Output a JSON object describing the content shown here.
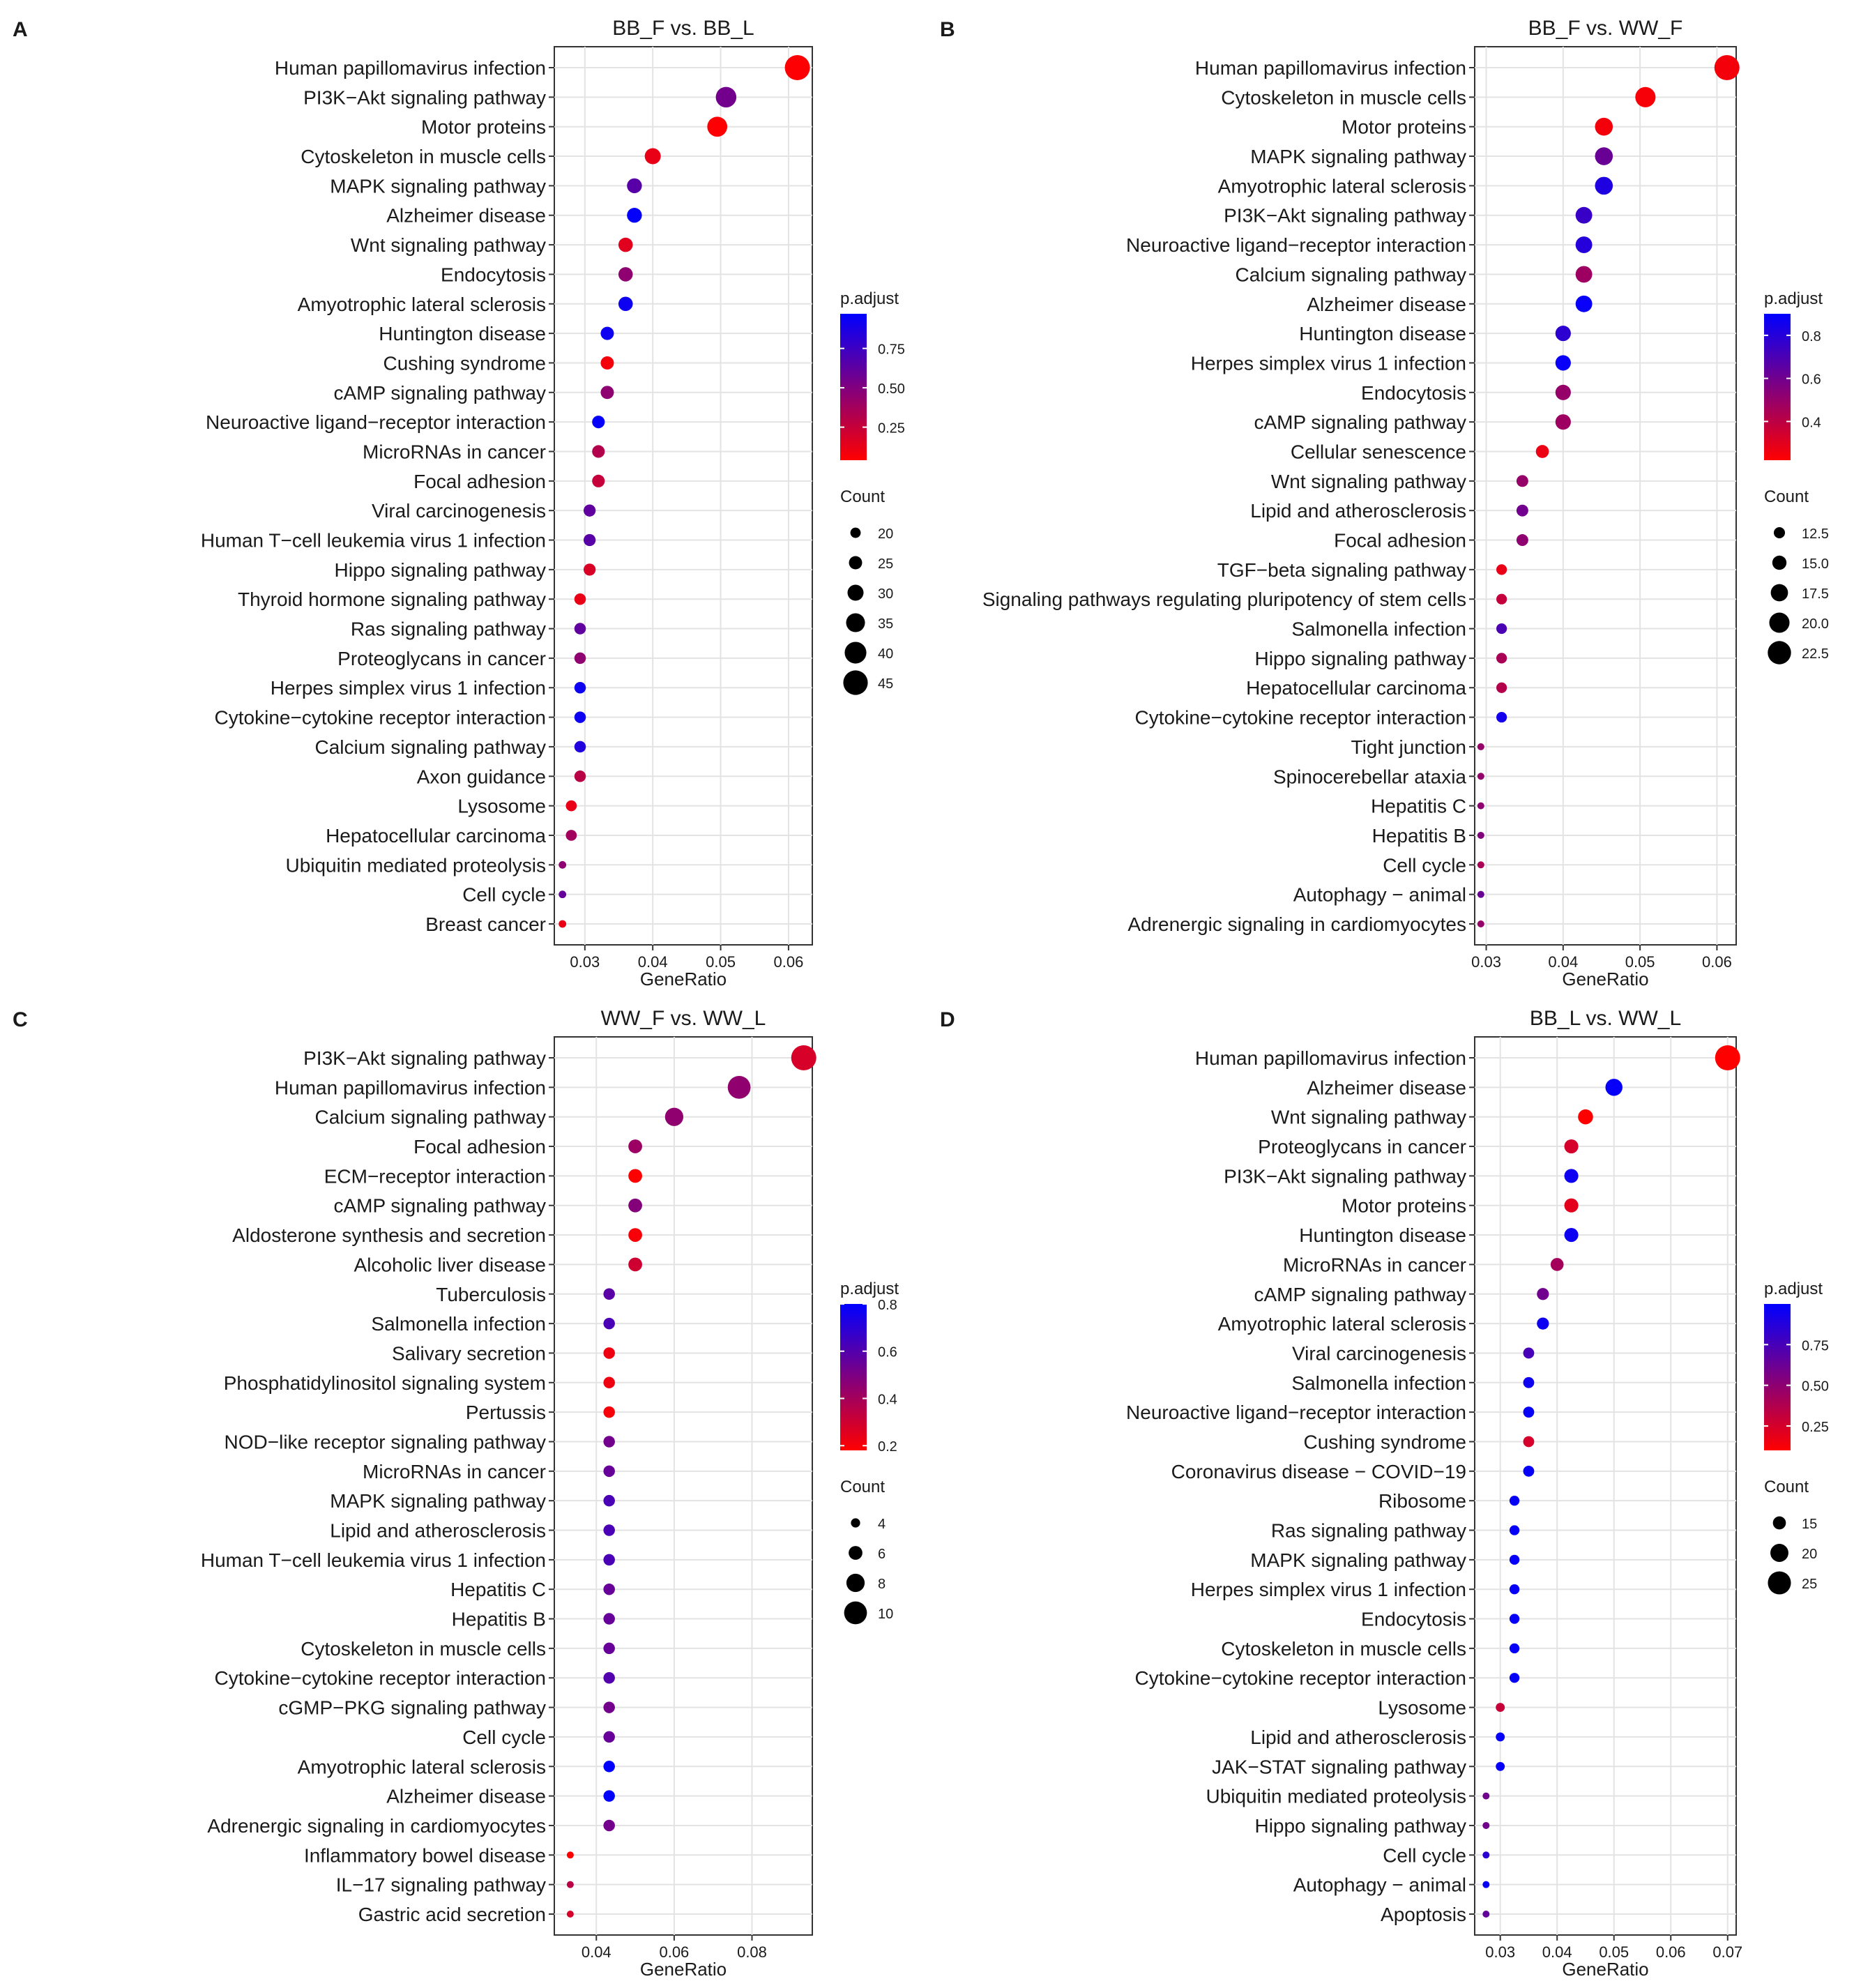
{
  "chart_data": [
    {
      "type": "scatter",
      "panel_letter": "A",
      "title": "BB_F vs. BB_L",
      "xlabel": "GeneRatio",
      "ylabel": "",
      "xlim": [
        0.0255,
        0.0635
      ],
      "xticks": [
        0.03,
        0.04,
        0.05,
        0.06
      ],
      "xtick_labels": [
        "0.03",
        "0.04",
        "0.05",
        "0.06"
      ],
      "legend_color": {
        "title": "p.adjust",
        "min": 0.04,
        "max": 0.97,
        "ticks": [
          0.25,
          0.5,
          0.75
        ],
        "tick_labels": [
          "0.25",
          "0.50",
          "0.75"
        ]
      },
      "legend_size": {
        "title": "Count",
        "count_min": 14,
        "count_max": 46,
        "values": [
          20,
          25,
          30,
          35,
          40,
          45
        ],
        "labels": [
          "20",
          "25",
          "30",
          "35",
          "40",
          "45"
        ]
      },
      "terms": [
        {
          "label": "Human papillomavirus infection",
          "x": 0.0613,
          "count": 46,
          "p": 0.05
        },
        {
          "label": "PI3K−Akt signaling pathway",
          "x": 0.0508,
          "count": 38,
          "p": 0.55
        },
        {
          "label": "Motor proteins",
          "x": 0.0495,
          "count": 37,
          "p": 0.05
        },
        {
          "label": "Cytoskeleton in muscle cells",
          "x": 0.04,
          "count": 30,
          "p": 0.12
        },
        {
          "label": "MAPK signaling pathway",
          "x": 0.0373,
          "count": 28,
          "p": 0.65
        },
        {
          "label": "Alzheimer disease",
          "x": 0.0373,
          "count": 28,
          "p": 0.95
        },
        {
          "label": "Wnt signaling pathway",
          "x": 0.036,
          "count": 27,
          "p": 0.15
        },
        {
          "label": "Endocytosis",
          "x": 0.036,
          "count": 27,
          "p": 0.45
        },
        {
          "label": "Amyotrophic lateral sclerosis",
          "x": 0.036,
          "count": 27,
          "p": 0.92
        },
        {
          "label": "Huntington disease",
          "x": 0.0333,
          "count": 25,
          "p": 0.92
        },
        {
          "label": "Cushing syndrome",
          "x": 0.0333,
          "count": 25,
          "p": 0.08
        },
        {
          "label": "cAMP signaling pathway",
          "x": 0.0333,
          "count": 25,
          "p": 0.45
        },
        {
          "label": "Neuroactive ligand−receptor interaction",
          "x": 0.032,
          "count": 24,
          "p": 0.95
        },
        {
          "label": "MicroRNAs in cancer",
          "x": 0.032,
          "count": 24,
          "p": 0.32
        },
        {
          "label": "Focal adhesion",
          "x": 0.032,
          "count": 24,
          "p": 0.25
        },
        {
          "label": "Viral carcinogenesis",
          "x": 0.0307,
          "count": 23,
          "p": 0.62
        },
        {
          "label": "Human T−cell leukemia virus 1 infection",
          "x": 0.0307,
          "count": 23,
          "p": 0.65
        },
        {
          "label": "Hippo signaling pathway",
          "x": 0.0307,
          "count": 23,
          "p": 0.18
        },
        {
          "label": "Thyroid hormone signaling pathway",
          "x": 0.0293,
          "count": 22,
          "p": 0.12
        },
        {
          "label": "Ras signaling pathway",
          "x": 0.0293,
          "count": 22,
          "p": 0.62
        },
        {
          "label": "Proteoglycans in cancer",
          "x": 0.0293,
          "count": 22,
          "p": 0.45
        },
        {
          "label": "Herpes simplex virus 1 infection",
          "x": 0.0293,
          "count": 22,
          "p": 0.92
        },
        {
          "label": "Cytokine−cytokine receptor interaction",
          "x": 0.0293,
          "count": 22,
          "p": 0.92
        },
        {
          "label": "Calcium signaling pathway",
          "x": 0.0293,
          "count": 22,
          "p": 0.85
        },
        {
          "label": "Axon guidance",
          "x": 0.0293,
          "count": 22,
          "p": 0.3
        },
        {
          "label": "Lysosome",
          "x": 0.028,
          "count": 21,
          "p": 0.12
        },
        {
          "label": "Hepatocellular carcinoma",
          "x": 0.028,
          "count": 21,
          "p": 0.38
        },
        {
          "label": "Ubiquitin mediated proteolysis",
          "x": 0.0267,
          "count": 15,
          "p": 0.45
        },
        {
          "label": "Cell cycle",
          "x": 0.0267,
          "count": 15,
          "p": 0.6
        },
        {
          "label": "Breast cancer",
          "x": 0.0267,
          "count": 15,
          "p": 0.12
        }
      ]
    },
    {
      "type": "scatter",
      "panel_letter": "B",
      "title": "BB_F vs. WW_F",
      "xlabel": "GeneRatio",
      "ylabel": "",
      "xlim": [
        0.0285,
        0.0625
      ],
      "xticks": [
        0.03,
        0.04,
        0.05,
        0.06
      ],
      "xtick_labels": [
        "0.03",
        "0.04",
        "0.05",
        "0.06"
      ],
      "legend_color": {
        "title": "p.adjust",
        "min": 0.22,
        "max": 0.9,
        "ticks": [
          0.4,
          0.6,
          0.8
        ],
        "tick_labels": [
          "0.4",
          "0.6",
          "0.8"
        ]
      },
      "legend_size": {
        "title": "Count",
        "count_min": 9,
        "count_max": 24,
        "values": [
          12.5,
          15,
          17.5,
          20,
          22.5
        ],
        "labels": [
          "12.5",
          "15.0",
          "17.5",
          "20.0",
          "22.5"
        ]
      },
      "terms": [
        {
          "label": "Human papillomavirus infection",
          "x": 0.0613,
          "count": 24,
          "p": 0.25
        },
        {
          "label": "Cytoskeleton in muscle cells",
          "x": 0.0507,
          "count": 20,
          "p": 0.24
        },
        {
          "label": "Motor proteins",
          "x": 0.0453,
          "count": 18,
          "p": 0.25
        },
        {
          "label": "MAPK signaling pathway",
          "x": 0.0453,
          "count": 18,
          "p": 0.62
        },
        {
          "label": "Amyotrophic lateral sclerosis",
          "x": 0.0453,
          "count": 18,
          "p": 0.82
        },
        {
          "label": "PI3K−Akt signaling pathway",
          "x": 0.0427,
          "count": 17,
          "p": 0.75
        },
        {
          "label": "Neuroactive ligand−receptor interaction",
          "x": 0.0427,
          "count": 17,
          "p": 0.8
        },
        {
          "label": "Calcium signaling pathway",
          "x": 0.0427,
          "count": 17,
          "p": 0.48
        },
        {
          "label": "Alzheimer disease",
          "x": 0.0427,
          "count": 17,
          "p": 0.88
        },
        {
          "label": "Huntington disease",
          "x": 0.04,
          "count": 16,
          "p": 0.78
        },
        {
          "label": "Herpes simplex virus 1 infection",
          "x": 0.04,
          "count": 16,
          "p": 0.88
        },
        {
          "label": "Endocytosis",
          "x": 0.04,
          "count": 16,
          "p": 0.5
        },
        {
          "label": "cAMP signaling pathway",
          "x": 0.04,
          "count": 16,
          "p": 0.48
        },
        {
          "label": "Cellular senescence",
          "x": 0.0373,
          "count": 14,
          "p": 0.27
        },
        {
          "label": "Wnt signaling pathway",
          "x": 0.0347,
          "count": 13,
          "p": 0.5
        },
        {
          "label": "Lipid and atherosclerosis",
          "x": 0.0347,
          "count": 13,
          "p": 0.6
        },
        {
          "label": "Focal adhesion",
          "x": 0.0347,
          "count": 13,
          "p": 0.52
        },
        {
          "label": "TGF−beta signaling pathway",
          "x": 0.032,
          "count": 12,
          "p": 0.28
        },
        {
          "label": "Signaling pathways regulating pluripotency of stem cells",
          "x": 0.032,
          "count": 12,
          "p": 0.38
        },
        {
          "label": "Salmonella infection",
          "x": 0.032,
          "count": 12,
          "p": 0.7
        },
        {
          "label": "Hippo signaling pathway",
          "x": 0.032,
          "count": 12,
          "p": 0.45
        },
        {
          "label": "Hepatocellular carcinoma",
          "x": 0.032,
          "count": 12,
          "p": 0.42
        },
        {
          "label": "Cytokine−cytokine receptor interaction",
          "x": 0.032,
          "count": 12,
          "p": 0.85
        },
        {
          "label": "Tight junction",
          "x": 0.0293,
          "count": 9,
          "p": 0.5
        },
        {
          "label": "Spinocerebellar ataxia",
          "x": 0.0293,
          "count": 9,
          "p": 0.5
        },
        {
          "label": "Hepatitis C",
          "x": 0.0293,
          "count": 9,
          "p": 0.52
        },
        {
          "label": "Hepatitis B",
          "x": 0.0293,
          "count": 9,
          "p": 0.55
        },
        {
          "label": "Cell cycle",
          "x": 0.0293,
          "count": 9,
          "p": 0.45
        },
        {
          "label": "Autophagy − animal",
          "x": 0.0293,
          "count": 9,
          "p": 0.62
        },
        {
          "label": "Adrenergic signaling in cardiomyocytes",
          "x": 0.0293,
          "count": 9,
          "p": 0.5
        }
      ]
    },
    {
      "type": "scatter",
      "panel_letter": "C",
      "title": "WW_F vs. WW_L",
      "xlabel": "GeneRatio",
      "ylabel": "",
      "xlim": [
        0.0292,
        0.0955
      ],
      "xticks": [
        0.04,
        0.06,
        0.08
      ],
      "xtick_labels": [
        "0.04",
        "0.06",
        "0.08"
      ],
      "legend_color": {
        "title": "p.adjust",
        "min": 0.18,
        "max": 0.8,
        "ticks": [
          0.2,
          0.4,
          0.6,
          0.8
        ],
        "tick_labels": [
          "0.2",
          "0.4",
          "0.6",
          "0.8"
        ]
      },
      "legend_size": {
        "title": "Count",
        "count_min": 3,
        "count_max": 11,
        "values": [
          4,
          6,
          8,
          10
        ],
        "labels": [
          "4",
          "6",
          "8",
          "10"
        ]
      },
      "terms": [
        {
          "label": "PI3K−Akt signaling pathway",
          "x": 0.0933,
          "count": 11,
          "p": 0.28
        },
        {
          "label": "Human papillomavirus infection",
          "x": 0.0767,
          "count": 10,
          "p": 0.45
        },
        {
          "label": "Calcium signaling pathway",
          "x": 0.06,
          "count": 8,
          "p": 0.45
        },
        {
          "label": "Focal adhesion",
          "x": 0.05,
          "count": 6,
          "p": 0.42
        },
        {
          "label": "ECM−receptor interaction",
          "x": 0.05,
          "count": 6,
          "p": 0.18
        },
        {
          "label": "cAMP signaling pathway",
          "x": 0.05,
          "count": 6,
          "p": 0.48
        },
        {
          "label": "Aldosterone synthesis and secretion",
          "x": 0.05,
          "count": 6,
          "p": 0.2
        },
        {
          "label": "Alcoholic liver disease",
          "x": 0.05,
          "count": 6,
          "p": 0.3
        },
        {
          "label": "Tuberculosis",
          "x": 0.0433,
          "count": 5,
          "p": 0.58
        },
        {
          "label": "Salmonella infection",
          "x": 0.0433,
          "count": 5,
          "p": 0.62
        },
        {
          "label": "Salivary secretion",
          "x": 0.0433,
          "count": 5,
          "p": 0.22
        },
        {
          "label": "Phosphatidylinositol signaling system",
          "x": 0.0433,
          "count": 5,
          "p": 0.22
        },
        {
          "label": "Pertussis",
          "x": 0.0433,
          "count": 5,
          "p": 0.2
        },
        {
          "label": "NOD−like receptor signaling pathway",
          "x": 0.0433,
          "count": 5,
          "p": 0.52
        },
        {
          "label": "MicroRNAs in cancer",
          "x": 0.0433,
          "count": 5,
          "p": 0.55
        },
        {
          "label": "MAPK signaling pathway",
          "x": 0.0433,
          "count": 5,
          "p": 0.62
        },
        {
          "label": "Lipid and atherosclerosis",
          "x": 0.0433,
          "count": 5,
          "p": 0.62
        },
        {
          "label": "Human T−cell leukemia virus 1 infection",
          "x": 0.0433,
          "count": 5,
          "p": 0.62
        },
        {
          "label": "Hepatitis C",
          "x": 0.0433,
          "count": 5,
          "p": 0.55
        },
        {
          "label": "Hepatitis B",
          "x": 0.0433,
          "count": 5,
          "p": 0.55
        },
        {
          "label": "Cytoskeleton in muscle cells",
          "x": 0.0433,
          "count": 5,
          "p": 0.55
        },
        {
          "label": "Cytokine−cytokine receptor interaction",
          "x": 0.0433,
          "count": 5,
          "p": 0.6
        },
        {
          "label": "cGMP−PKG signaling pathway",
          "x": 0.0433,
          "count": 5,
          "p": 0.52
        },
        {
          "label": "Cell cycle",
          "x": 0.0433,
          "count": 5,
          "p": 0.55
        },
        {
          "label": "Amyotrophic lateral sclerosis",
          "x": 0.0433,
          "count": 5,
          "p": 0.8
        },
        {
          "label": "Alzheimer disease",
          "x": 0.0433,
          "count": 5,
          "p": 0.8
        },
        {
          "label": "Adrenergic signaling in cardiomyocytes",
          "x": 0.0433,
          "count": 5,
          "p": 0.52
        },
        {
          "label": "Inflammatory bowel disease",
          "x": 0.0333,
          "count": 3,
          "p": 0.18
        },
        {
          "label": "IL−17 signaling pathway",
          "x": 0.0333,
          "count": 3,
          "p": 0.35
        },
        {
          "label": "Gastric acid secretion",
          "x": 0.0333,
          "count": 3,
          "p": 0.28
        }
      ]
    },
    {
      "type": "scatter",
      "panel_letter": "D",
      "title": "BB_L vs. WW_L",
      "xlabel": "GeneRatio",
      "ylabel": "",
      "xlim": [
        0.0255,
        0.0715
      ],
      "xticks": [
        0.03,
        0.04,
        0.05,
        0.06,
        0.07
      ],
      "xtick_labels": [
        "0.03",
        "0.04",
        "0.05",
        "0.06",
        "0.07"
      ],
      "legend_color": {
        "title": "p.adjust",
        "min": 0.1,
        "max": 1.0,
        "ticks": [
          0.25,
          0.5,
          0.75
        ],
        "tick_labels": [
          "0.25",
          "0.50",
          "0.75"
        ]
      },
      "legend_size": {
        "title": "Count",
        "count_min": 9,
        "count_max": 27,
        "values": [
          15,
          20,
          25
        ],
        "labels": [
          "15",
          "20",
          "25"
        ]
      },
      "terms": [
        {
          "label": "Human papillomavirus infection",
          "x": 0.07,
          "count": 27,
          "p": 0.1
        },
        {
          "label": "Alzheimer disease",
          "x": 0.05,
          "count": 19,
          "p": 0.98
        },
        {
          "label": "Wnt signaling pathway",
          "x": 0.045,
          "count": 17,
          "p": 0.1
        },
        {
          "label": "Proteoglycans in cancer",
          "x": 0.0425,
          "count": 16,
          "p": 0.25
        },
        {
          "label": "PI3K−Akt signaling pathway",
          "x": 0.0425,
          "count": 16,
          "p": 0.95
        },
        {
          "label": "Motor proteins",
          "x": 0.0425,
          "count": 16,
          "p": 0.2
        },
        {
          "label": "Huntington disease",
          "x": 0.0425,
          "count": 16,
          "p": 0.95
        },
        {
          "label": "MicroRNAs in cancer",
          "x": 0.04,
          "count": 15,
          "p": 0.42
        },
        {
          "label": "cAMP signaling pathway",
          "x": 0.0375,
          "count": 14,
          "p": 0.6
        },
        {
          "label": "Amyotrophic lateral sclerosis",
          "x": 0.0375,
          "count": 14,
          "p": 0.95
        },
        {
          "label": "Viral carcinogenesis",
          "x": 0.035,
          "count": 13,
          "p": 0.75
        },
        {
          "label": "Salmonella infection",
          "x": 0.035,
          "count": 13,
          "p": 0.95
        },
        {
          "label": "Neuroactive ligand−receptor interaction",
          "x": 0.035,
          "count": 13,
          "p": 0.98
        },
        {
          "label": "Cushing syndrome",
          "x": 0.035,
          "count": 13,
          "p": 0.25
        },
        {
          "label": "Coronavirus disease − COVID−19",
          "x": 0.035,
          "count": 13,
          "p": 0.98
        },
        {
          "label": "Ribosome",
          "x": 0.0325,
          "count": 12,
          "p": 0.98
        },
        {
          "label": "Ras signaling pathway",
          "x": 0.0325,
          "count": 12,
          "p": 0.98
        },
        {
          "label": "MAPK signaling pathway",
          "x": 0.0325,
          "count": 12,
          "p": 0.98
        },
        {
          "label": "Herpes simplex virus 1 infection",
          "x": 0.0325,
          "count": 12,
          "p": 0.98
        },
        {
          "label": "Endocytosis",
          "x": 0.0325,
          "count": 12,
          "p": 0.98
        },
        {
          "label": "Cytoskeleton in muscle cells",
          "x": 0.0325,
          "count": 12,
          "p": 0.98
        },
        {
          "label": "Cytokine−cytokine receptor interaction",
          "x": 0.0325,
          "count": 12,
          "p": 0.98
        },
        {
          "label": "Lysosome",
          "x": 0.03,
          "count": 11,
          "p": 0.3
        },
        {
          "label": "Lipid and atherosclerosis",
          "x": 0.03,
          "count": 11,
          "p": 0.98
        },
        {
          "label": "JAK−STAT signaling pathway",
          "x": 0.03,
          "count": 11,
          "p": 0.98
        },
        {
          "label": "Ubiquitin mediated proteolysis",
          "x": 0.0275,
          "count": 9,
          "p": 0.6
        },
        {
          "label": "Hippo signaling pathway",
          "x": 0.0275,
          "count": 9,
          "p": 0.6
        },
        {
          "label": "Cell cycle",
          "x": 0.0275,
          "count": 9,
          "p": 0.85
        },
        {
          "label": "Autophagy − animal",
          "x": 0.0275,
          "count": 9,
          "p": 0.98
        },
        {
          "label": "Apoptosis",
          "x": 0.0275,
          "count": 9,
          "p": 0.65
        }
      ]
    }
  ]
}
